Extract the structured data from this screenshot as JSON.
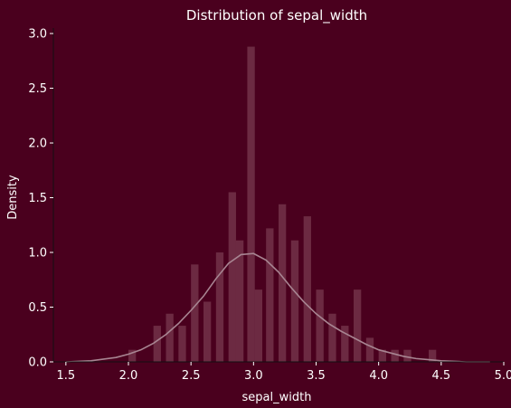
{
  "chart_data": {
    "type": "bar",
    "title": "Distribution of sepal_width",
    "xlabel": "sepal_width",
    "ylabel": "Density",
    "xlim": [
      1.4,
      5.0
    ],
    "ylim": [
      0,
      3.05
    ],
    "xticks": [
      1.5,
      2.0,
      2.5,
      3.0,
      3.5,
      4.0,
      4.5,
      5.0
    ],
    "xtick_labels": [
      "1.5",
      "2.0",
      "2.5",
      "3.0",
      "3.5",
      "4.0",
      "4.5",
      "5.0"
    ],
    "yticks": [
      0.0,
      0.5,
      1.0,
      1.5,
      2.0,
      2.5,
      3.0
    ],
    "ytick_labels": [
      "0.0",
      "0.5",
      "1.0",
      "1.5",
      "2.0",
      "2.5",
      "3.0"
    ],
    "bins": [
      {
        "x0": 2.0,
        "x1": 2.06,
        "density": 0.11
      },
      {
        "x0": 2.2,
        "x1": 2.26,
        "density": 0.33
      },
      {
        "x0": 2.3,
        "x1": 2.36,
        "density": 0.44
      },
      {
        "x0": 2.4,
        "x1": 2.46,
        "density": 0.33
      },
      {
        "x0": 2.5,
        "x1": 2.56,
        "density": 0.89
      },
      {
        "x0": 2.6,
        "x1": 2.66,
        "density": 0.55
      },
      {
        "x0": 2.7,
        "x1": 2.76,
        "density": 1.0
      },
      {
        "x0": 2.8,
        "x1": 2.86,
        "density": 1.55
      },
      {
        "x0": 2.86,
        "x1": 2.92,
        "density": 1.11
      },
      {
        "x0": 2.95,
        "x1": 3.01,
        "density": 2.88
      },
      {
        "x0": 3.01,
        "x1": 3.07,
        "density": 0.66
      },
      {
        "x0": 3.1,
        "x1": 3.16,
        "density": 1.22
      },
      {
        "x0": 3.2,
        "x1": 3.26,
        "density": 1.44
      },
      {
        "x0": 3.3,
        "x1": 3.36,
        "density": 1.11
      },
      {
        "x0": 3.4,
        "x1": 3.46,
        "density": 1.33
      },
      {
        "x0": 3.5,
        "x1": 3.56,
        "density": 0.66
      },
      {
        "x0": 3.6,
        "x1": 3.66,
        "density": 0.44
      },
      {
        "x0": 3.7,
        "x1": 3.76,
        "density": 0.33
      },
      {
        "x0": 3.8,
        "x1": 3.86,
        "density": 0.66
      },
      {
        "x0": 3.9,
        "x1": 3.96,
        "density": 0.22
      },
      {
        "x0": 4.0,
        "x1": 4.06,
        "density": 0.11
      },
      {
        "x0": 4.1,
        "x1": 4.16,
        "density": 0.11
      },
      {
        "x0": 4.2,
        "x1": 4.26,
        "density": 0.11
      },
      {
        "x0": 4.4,
        "x1": 4.46,
        "density": 0.11
      }
    ],
    "kde": {
      "x": [
        1.5,
        1.7,
        1.9,
        2.0,
        2.1,
        2.2,
        2.3,
        2.4,
        2.5,
        2.6,
        2.7,
        2.8,
        2.9,
        3.0,
        3.1,
        3.2,
        3.3,
        3.4,
        3.5,
        3.6,
        3.7,
        3.8,
        3.9,
        4.0,
        4.1,
        4.2,
        4.3,
        4.4,
        4.5,
        4.7,
        4.89
      ],
      "y": [
        0.0,
        0.01,
        0.04,
        0.07,
        0.11,
        0.17,
        0.25,
        0.35,
        0.47,
        0.6,
        0.76,
        0.9,
        0.98,
        0.99,
        0.93,
        0.82,
        0.68,
        0.55,
        0.44,
        0.35,
        0.28,
        0.22,
        0.16,
        0.11,
        0.08,
        0.05,
        0.03,
        0.02,
        0.01,
        0.0,
        0.0
      ]
    },
    "colors": {
      "background": "#4a001e",
      "plot_background": "#4a001e",
      "bar": "#a06878",
      "kde_line": "#a88592",
      "text": "#ffffff",
      "axis": "#111111"
    },
    "grid": false,
    "legend": "none"
  }
}
